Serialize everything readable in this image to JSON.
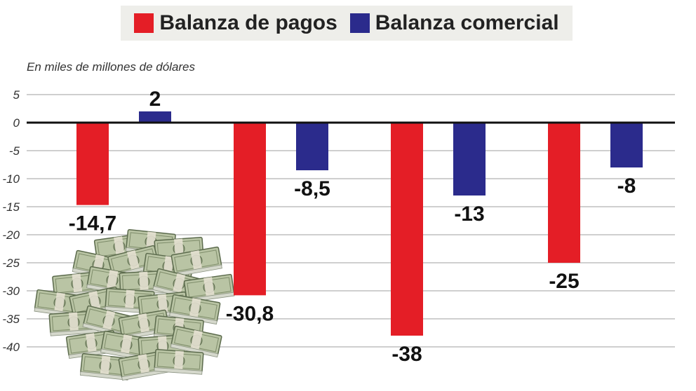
{
  "chart_data": {
    "type": "bar",
    "title": "",
    "ylabel": "En miles de millones de dólares",
    "xlabel": "",
    "categories": [
      "",
      "",
      "",
      ""
    ],
    "series": [
      {
        "name": "Balanza de pagos",
        "color": "#e41e26",
        "values": [
          -14.7,
          -30.8,
          -38,
          -25
        ],
        "labels": [
          "-14,7",
          "-30,8",
          "-38",
          "-25"
        ]
      },
      {
        "name": "Balanza comercial",
        "color": "#2b2b8c",
        "values": [
          2,
          -8.5,
          -13,
          -8
        ],
        "labels": [
          "2",
          "-8,5",
          "-13",
          "-8"
        ]
      }
    ],
    "ylim": [
      -42,
      7
    ],
    "yticks": [
      5,
      0,
      -5,
      -10,
      -15,
      -20,
      -25,
      -30,
      -35,
      -40
    ],
    "ytick_labels": [
      "5",
      "0",
      "-5",
      "-10",
      "-15",
      "-20",
      "-25",
      "-30",
      "-35",
      "-40"
    ],
    "grid": true,
    "legend": "top"
  },
  "decoration": {
    "icon": "money-stack-icon"
  }
}
